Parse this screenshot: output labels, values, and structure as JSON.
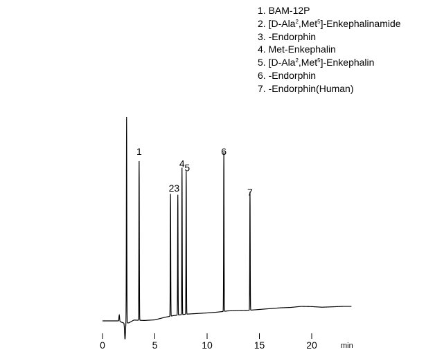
{
  "legend": {
    "items": [
      {
        "parts": [
          {
            "t": "1. BAM-12P"
          }
        ]
      },
      {
        "parts": [
          {
            "t": "2. [D-Ala"
          },
          {
            "t": "2",
            "sup": true
          },
          {
            "t": ",Met"
          },
          {
            "t": "5",
            "sup": true
          },
          {
            "t": "]-Enkephalinamide"
          }
        ]
      },
      {
        "parts": [
          {
            "t": "3.    -Endorphin"
          }
        ]
      },
      {
        "parts": [
          {
            "t": "4. Met-Enkephalin"
          }
        ]
      },
      {
        "parts": [
          {
            "t": "5. [D-Ala"
          },
          {
            "t": "2",
            "sup": true
          },
          {
            "t": ",Met"
          },
          {
            "t": "5",
            "sup": true
          },
          {
            "t": "]-Enkephalin"
          }
        ]
      },
      {
        "parts": [
          {
            "t": "6.    -Endorphin"
          }
        ]
      },
      {
        "parts": [
          {
            "t": "7.    -Endorphin(Human)"
          }
        ]
      }
    ]
  },
  "chart_data": {
    "type": "line",
    "x_unit_label": "min",
    "xlim": [
      0,
      24
    ],
    "ylim": [
      0,
      100
    ],
    "xticks": [
      0,
      5,
      10,
      15,
      20
    ],
    "grid": false,
    "solvent_front": {
      "x": 2.3,
      "y": 100
    },
    "peaks": [
      {
        "label": "1",
        "x": 3.5,
        "height": 78
      },
      {
        "label": "2",
        "x": 6.5,
        "height": 60
      },
      {
        "label": "3",
        "x": 7.2,
        "height": 59
      },
      {
        "label": "4",
        "x": 7.6,
        "height": 72
      },
      {
        "label": "5",
        "x": 8.0,
        "height": 70
      },
      {
        "label": "6",
        "x": 11.6,
        "height": 78
      },
      {
        "label": "7",
        "x": 14.1,
        "height": 58
      }
    ],
    "peak_annotations": [
      {
        "text": "1",
        "x": 3.5
      },
      {
        "text": "23",
        "x": 6.85
      },
      {
        "text": "4",
        "x": 7.6
      },
      {
        "text": "5",
        "x": 8.1
      },
      {
        "text": "6",
        "x": 11.6
      },
      {
        "text": "7",
        "x": 14.1
      }
    ],
    "baseline": [
      [
        0,
        0
      ],
      [
        1.5,
        0
      ],
      [
        2.0,
        -1
      ],
      [
        2.5,
        -1
      ],
      [
        3.0,
        0.4
      ],
      [
        4.0,
        0.2
      ],
      [
        5.0,
        0.5
      ],
      [
        6.0,
        1.8
      ],
      [
        6.8,
        2.6
      ],
      [
        8.0,
        3.3
      ],
      [
        9.0,
        3.6
      ],
      [
        10.0,
        3.9
      ],
      [
        11.0,
        4.3
      ],
      [
        12.0,
        4.9
      ],
      [
        13.0,
        5.1
      ],
      [
        14.0,
        5.2
      ],
      [
        15.0,
        5.6
      ],
      [
        16.0,
        6.0
      ],
      [
        17.0,
        6.4
      ],
      [
        18.0,
        6.6
      ],
      [
        19.0,
        7.1
      ],
      [
        20.0,
        7.0
      ],
      [
        21.0,
        6.7
      ],
      [
        22.0,
        6.9
      ],
      [
        23.0,
        7.1
      ],
      [
        23.8,
        7.1
      ]
    ]
  }
}
